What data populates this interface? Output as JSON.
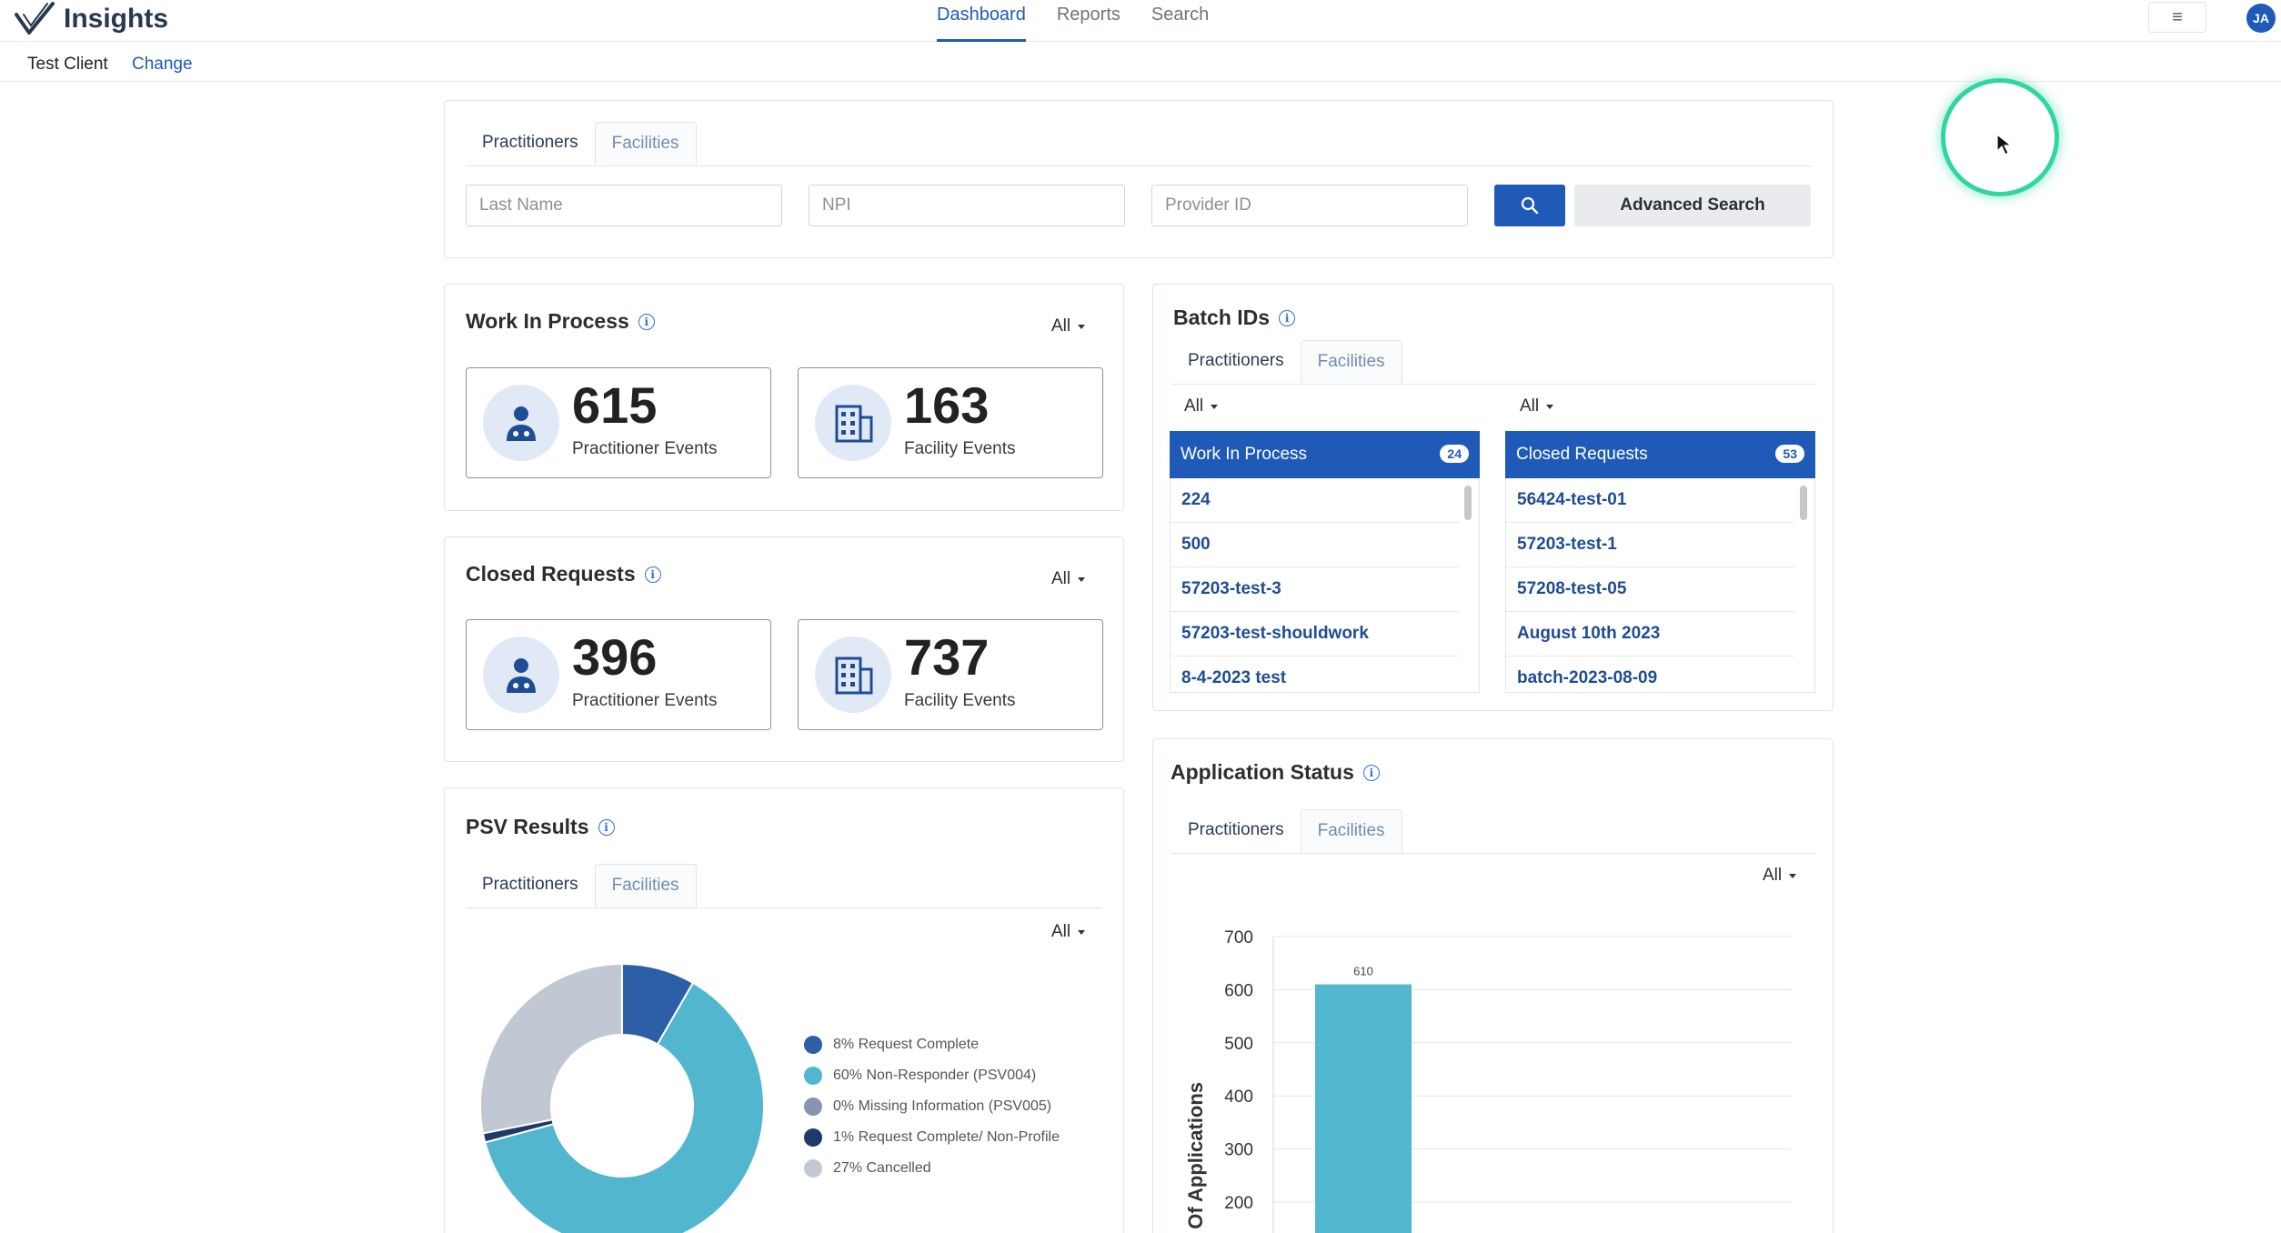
{
  "app": {
    "title": "Insights",
    "nav": [
      {
        "label": "Dashboard",
        "active": true
      },
      {
        "label": "Reports",
        "active": false
      },
      {
        "label": "Search",
        "active": false
      }
    ],
    "menu_icon": "hamburger-icon",
    "avatar_initials": "JA",
    "brand_color": "#1f5ab8"
  },
  "client": {
    "name": "Test Client",
    "change_label": "Change"
  },
  "search": {
    "tabs": [
      "Practitioners",
      "Facilities"
    ],
    "last_name_placeholder": "Last Name",
    "npi_placeholder": "NPI",
    "provider_id_placeholder": "Provider ID",
    "search_icon": "search-icon",
    "advanced_label": "Advanced Search"
  },
  "work_in_process": {
    "title": "Work In Process",
    "filter": "All",
    "practitioner": {
      "value": "615",
      "label": "Practitioner Events"
    },
    "facility": {
      "value": "163",
      "label": "Facility Events"
    }
  },
  "closed_requests": {
    "title": "Closed Requests",
    "filter": "All",
    "practitioner": {
      "value": "396",
      "label": "Practitioner Events"
    },
    "facility": {
      "value": "737",
      "label": "Facility Events"
    }
  },
  "batch_ids": {
    "title": "Batch IDs",
    "tabs": [
      "Practitioners",
      "Facilities"
    ],
    "filter_left": "All",
    "filter_right": "All",
    "wip": {
      "header": "Work In Process",
      "count": "24",
      "items": [
        "224",
        "500",
        "57203-test-3",
        "57203-test-shouldwork",
        "8-4-2023 test"
      ]
    },
    "closed": {
      "header": "Closed Requests",
      "count": "53",
      "items": [
        "56424-test-01",
        "57203-test-1",
        "57208-test-05",
        "August 10th 2023",
        "batch-2023-08-09"
      ]
    }
  },
  "psv_results": {
    "title": "PSV Results",
    "tabs": [
      "Practitioners",
      "Facilities"
    ],
    "filter": "All",
    "legend": [
      {
        "label": "8%  Request Complete",
        "color": "#2c5fa8"
      },
      {
        "label": "60%  Non-Responder (PSV004)",
        "color": "#53b6cf"
      },
      {
        "label": "0%  Missing Information (PSV005)",
        "color": "#8794b3"
      },
      {
        "label": "1%  Request Complete/ Non-Profile",
        "color": "#1e3a6b"
      },
      {
        "label": "27%  Cancelled",
        "color": "#c2c8d3"
      }
    ]
  },
  "application_status": {
    "title": "Application Status",
    "tabs": [
      "Practitioners",
      "Facilities"
    ],
    "filter": "All",
    "ylabel": "# Of Applications",
    "bar_label": "610"
  },
  "chart_data": [
    {
      "type": "pie",
      "title": "PSV Results",
      "categories": [
        "Request Complete",
        "Non-Responder (PSV004)",
        "Missing Information (PSV005)",
        "Request Complete/ Non-Profile",
        "Cancelled"
      ],
      "values": [
        8,
        60,
        0,
        1,
        27
      ],
      "colors": [
        "#2c5fa8",
        "#53b6cf",
        "#8794b3",
        "#1e3a6b",
        "#c2c8d3"
      ]
    },
    {
      "type": "bar",
      "title": "Application Status",
      "ylabel": "# Of Applications",
      "values": [
        610
      ],
      "yticks": [
        200,
        300,
        400,
        500,
        600,
        700
      ],
      "ylim": [
        0,
        700
      ],
      "color": "#53b6cf"
    }
  ]
}
